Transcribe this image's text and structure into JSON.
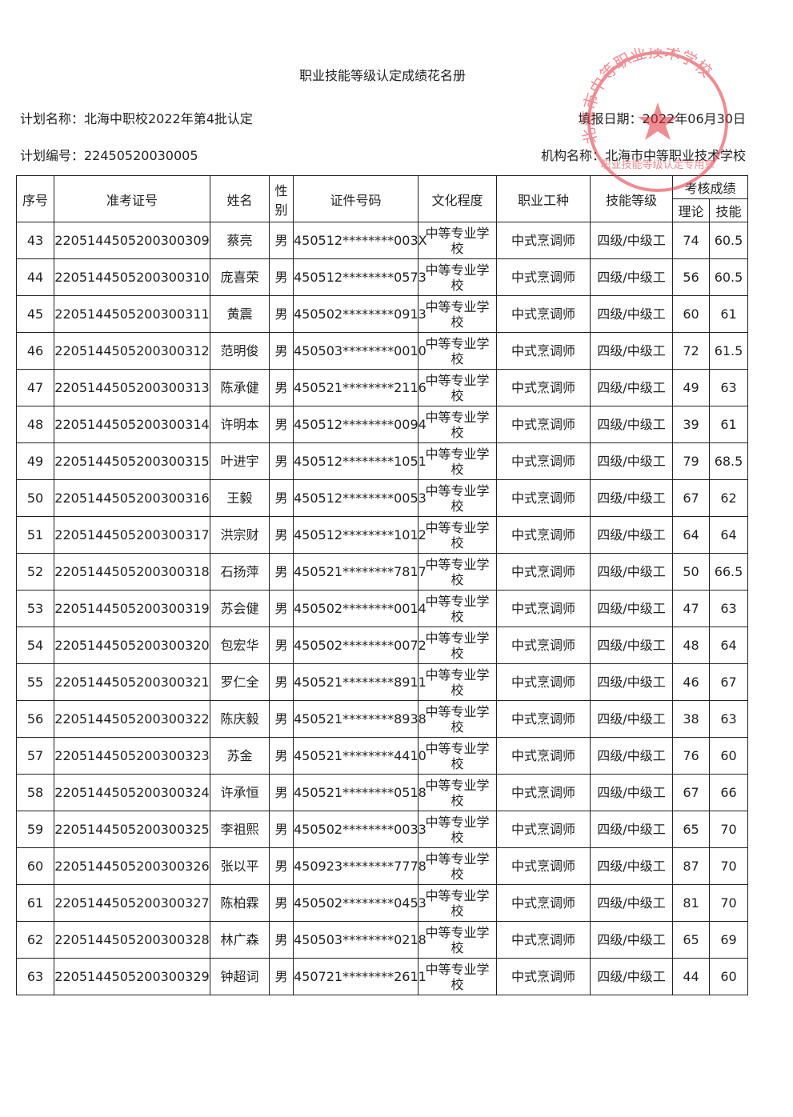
{
  "header": {
    "title": "职业技能等级认定成绩花名册",
    "plan_name": "计划名称：北海中职校2022年第4批认定",
    "fill_date": "填报日期：2022年06月30日",
    "plan_no": "计划编号：22450520030005",
    "org": "机构名称：北海市中等职业技术学校"
  },
  "stamp": {
    "name": "北海市中等职业技术学校",
    "purpose": "职业技能等级认定专用章"
  },
  "table": {
    "columns": [
      "序号",
      "准考证号",
      "姓名",
      "性别",
      "证件号码",
      "文化程度",
      "职业工种",
      "技能等级",
      "考核成绩"
    ],
    "subcolumns": [
      "理论",
      "技能"
    ],
    "rows": [
      [
        "43",
        "2205144505200300309",
        "蔡亮",
        "男",
        "450512********003X",
        "中等专业学校",
        "中式烹调师",
        "四级/中级工",
        "74",
        "60.5"
      ],
      [
        "44",
        "2205144505200300310",
        "庞喜荣",
        "男",
        "450512********0573",
        "中等专业学校",
        "中式烹调师",
        "四级/中级工",
        "56",
        "60.5"
      ],
      [
        "45",
        "2205144505200300311",
        "黄震",
        "男",
        "450502********0913",
        "中等专业学校",
        "中式烹调师",
        "四级/中级工",
        "60",
        "61"
      ],
      [
        "46",
        "2205144505200300312",
        "范明俊",
        "男",
        "450503********0010",
        "中等专业学校",
        "中式烹调师",
        "四级/中级工",
        "72",
        "61.5"
      ],
      [
        "47",
        "2205144505200300313",
        "陈承健",
        "男",
        "450521********2116",
        "中等专业学校",
        "中式烹调师",
        "四级/中级工",
        "49",
        "63"
      ],
      [
        "48",
        "2205144505200300314",
        "许明本",
        "男",
        "450512********0094",
        "中等专业学校",
        "中式烹调师",
        "四级/中级工",
        "39",
        "61"
      ],
      [
        "49",
        "2205144505200300315",
        "叶进宇",
        "男",
        "450512********1051",
        "中等专业学校",
        "中式烹调师",
        "四级/中级工",
        "79",
        "68.5"
      ],
      [
        "50",
        "2205144505200300316",
        "王毅",
        "男",
        "450512********0053",
        "中等专业学校",
        "中式烹调师",
        "四级/中级工",
        "67",
        "62"
      ],
      [
        "51",
        "2205144505200300317",
        "洪宗财",
        "男",
        "450512********1012",
        "中等专业学校",
        "中式烹调师",
        "四级/中级工",
        "64",
        "64"
      ],
      [
        "52",
        "2205144505200300318",
        "石扬萍",
        "男",
        "450521********7817",
        "中等专业学校",
        "中式烹调师",
        "四级/中级工",
        "50",
        "66.5"
      ],
      [
        "53",
        "2205144505200300319",
        "苏会健",
        "男",
        "450502********0014",
        "中等专业学校",
        "中式烹调师",
        "四级/中级工",
        "47",
        "63"
      ],
      [
        "54",
        "2205144505200300320",
        "包宏华",
        "男",
        "450502********0072",
        "中等专业学校",
        "中式烹调师",
        "四级/中级工",
        "48",
        "64"
      ],
      [
        "55",
        "2205144505200300321",
        "罗仁全",
        "男",
        "450521********8911",
        "中等专业学校",
        "中式烹调师",
        "四级/中级工",
        "46",
        "67"
      ],
      [
        "56",
        "2205144505200300322",
        "陈庆毅",
        "男",
        "450521********8938",
        "中等专业学校",
        "中式烹调师",
        "四级/中级工",
        "38",
        "63"
      ],
      [
        "57",
        "2205144505200300323",
        "苏金",
        "男",
        "450521********4410",
        "中等专业学校",
        "中式烹调师",
        "四级/中级工",
        "76",
        "60"
      ],
      [
        "58",
        "2205144505200300324",
        "许承恒",
        "男",
        "450521********0518",
        "中等专业学校",
        "中式烹调师",
        "四级/中级工",
        "67",
        "66"
      ],
      [
        "59",
        "2205144505200300325",
        "李祖熙",
        "男",
        "450502********0033",
        "中等专业学校",
        "中式烹调师",
        "四级/中级工",
        "65",
        "70"
      ],
      [
        "60",
        "2205144505200300326",
        "张以平",
        "男",
        "450923********7778",
        "中等专业学校",
        "中式烹调师",
        "四级/中级工",
        "87",
        "70"
      ],
      [
        "61",
        "2205144505200300327",
        "陈柏霖",
        "男",
        "450502********0453",
        "中等专业学校",
        "中式烹调师",
        "四级/中级工",
        "81",
        "70"
      ],
      [
        "62",
        "2205144505200300328",
        "林广森",
        "男",
        "450503********0218",
        "中等专业学校",
        "中式烹调师",
        "四级/中级工",
        "65",
        "69"
      ],
      [
        "63",
        "2205144505200300329",
        "钟超词",
        "男",
        "450721********2611",
        "中等专业学校",
        "中式烹调师",
        "四级/中级工",
        "44",
        "60"
      ]
    ]
  }
}
